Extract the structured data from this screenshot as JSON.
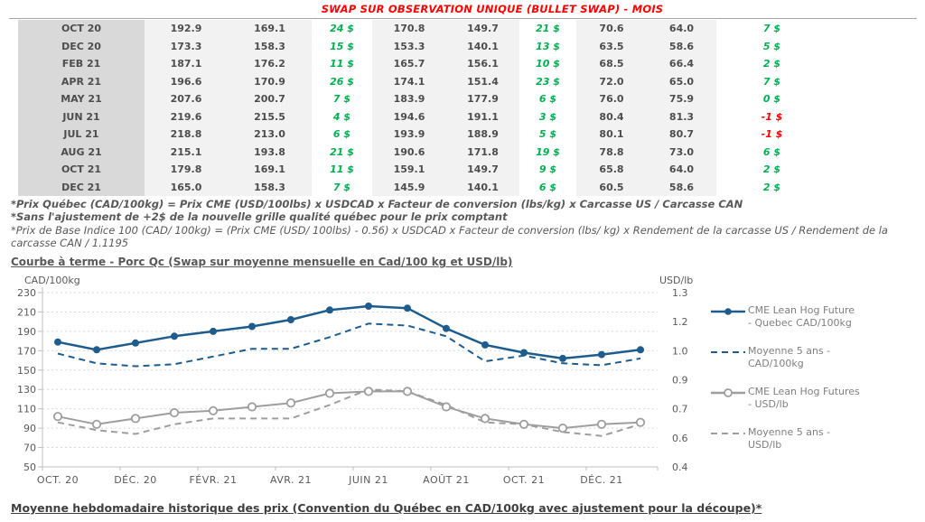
{
  "title": "SWAP SUR OBSERVATION UNIQUE (BULLET SWAP) - MOIS",
  "table": {
    "rows": [
      {
        "month": "OCT 20",
        "cells": [
          "192.9",
          "169.1",
          "24 $",
          "170.8",
          "149.7",
          "21 $",
          "70.6",
          "64.0",
          "7 $"
        ]
      },
      {
        "month": "DEC 20",
        "cells": [
          "173.3",
          "158.3",
          "15 $",
          "153.3",
          "140.1",
          "13 $",
          "63.5",
          "58.6",
          "5 $"
        ]
      },
      {
        "month": "FEB 21",
        "cells": [
          "187.1",
          "176.2",
          "11 $",
          "165.7",
          "156.1",
          "10 $",
          "68.5",
          "66.4",
          "2 $"
        ]
      },
      {
        "month": "APR 21",
        "cells": [
          "196.6",
          "170.9",
          "26 $",
          "174.1",
          "151.4",
          "23 $",
          "72.0",
          "65.0",
          "7 $"
        ]
      },
      {
        "month": "MAY 21",
        "cells": [
          "207.6",
          "200.7",
          "7 $",
          "183.9",
          "177.9",
          "6 $",
          "76.0",
          "75.9",
          "0 $"
        ]
      },
      {
        "month": "JUN 21",
        "cells": [
          "219.6",
          "215.5",
          "4 $",
          "194.6",
          "191.1",
          "3 $",
          "80.4",
          "81.3",
          "-1 $"
        ]
      },
      {
        "month": "JUL 21",
        "cells": [
          "218.8",
          "213.0",
          "6 $",
          "193.9",
          "188.9",
          "5 $",
          "80.1",
          "80.7",
          "-1 $"
        ]
      },
      {
        "month": "AUG 21",
        "cells": [
          "215.1",
          "193.8",
          "21 $",
          "190.6",
          "171.8",
          "19 $",
          "78.8",
          "73.0",
          "6 $"
        ]
      },
      {
        "month": "OCT 21",
        "cells": [
          "179.8",
          "169.1",
          "11 $",
          "159.1",
          "149.7",
          "9 $",
          "65.8",
          "64.0",
          "2 $"
        ]
      },
      {
        "month": "DEC 21",
        "cells": [
          "165.0",
          "158.3",
          "7 $",
          "145.9",
          "140.1",
          "6 $",
          "60.5",
          "58.6",
          "2 $"
        ]
      }
    ]
  },
  "footnotes": [
    "*Prix Québec (CAD/100kg) = Prix CME (USD/100lbs) x USDCAD x Facteur de conversion (lbs/kg) x Carcasse US / Carcasse CAN",
    "*Sans l'ajustement de +2$ de la nouvelle grille qualité québec pour le prix comptant",
    "*Prix de Base Indice 100 (CAD/ 100kg) = (Prix CME (USD/ 100lbs) - 0.56) x USDCAD x Facteur de conversion (lbs/ kg) x Rendement de la carcasse US / Rendement de la carcasse CAN / 1.1195"
  ],
  "chart_heading": "Courbe à terme - Porc Qc (Swap sur moyenne mensuelle en Cad/100 kg et USD/lb)",
  "bottom_heading": "Moyenne hebdomadaire historique des prix (Convention du Québec en CAD/100kg avec ajustement pour la découpe)*",
  "colors": {
    "title_red": "#ff0000",
    "positive_green": "#00b050",
    "negative_red": "#ff0000",
    "series_blue": "#1d5c8d",
    "series_gray": "#9e9e9e"
  },
  "chart_data": {
    "type": "line",
    "title": "Courbe à terme - Porc Qc (Swap sur moyenne mensuelle en Cad/100 kg et USD/lb)",
    "x": [
      "OCT 20",
      "NOV 20",
      "DÉC 20",
      "JANV 21",
      "FÉVR 21",
      "MARS 21",
      "AVR 21",
      "MAI 21",
      "JUIN 21",
      "JUIL 21",
      "AOÛT 21",
      "SEPT 21",
      "OCT 21",
      "NOV 21",
      "DÉC 21",
      "JANV 22"
    ],
    "x_tick_labels": [
      "OCT. 20",
      "DÉC. 20",
      "FÉVR. 21",
      "AVR. 21",
      "JUIN 21",
      "AOÛT 21",
      "OCT. 21",
      "DÉC. 21"
    ],
    "left_axis": {
      "title": "CAD/100kg",
      "min": 50,
      "max": 230,
      "ticks": [
        230,
        210,
        190,
        170,
        150,
        130,
        110,
        90,
        70,
        50
      ]
    },
    "right_axis": {
      "title": "USD/lb",
      "min": 0.4,
      "max": 1.3,
      "tick_labels": [
        "1.3",
        "1.2",
        "1.0",
        "0.9",
        "0.7",
        "0.6",
        "0.4"
      ]
    },
    "grid": "horizontal-dashed",
    "legend_position": "right",
    "series": [
      {
        "name": "CME Lean Hog Future - Quebec CAD/100kg",
        "legend_lines": [
          "CME Lean Hog Future",
          "- Quebec CAD/100kg"
        ],
        "axis": "left",
        "style": "solid",
        "marker": "filled",
        "color": "#1d5c8d",
        "values": [
          179,
          171,
          178,
          185,
          190,
          195,
          202,
          212,
          216,
          214,
          193,
          176,
          168,
          162,
          166,
          171
        ]
      },
      {
        "name": "Moyenne 5 ans - CAD/100kg",
        "legend_lines": [
          "Moyenne 5 ans -",
          "CAD/100kg"
        ],
        "axis": "left",
        "style": "dashed",
        "marker": "none",
        "color": "#1d5c8d",
        "values": [
          167,
          157,
          154,
          156,
          164,
          172,
          172,
          184,
          198,
          196,
          185,
          159,
          165,
          157,
          155,
          162
        ]
      },
      {
        "name": "CME Lean Hog Futures - USD/lb",
        "legend_lines": [
          "CME Lean Hog Futures",
          "- USD/lb"
        ],
        "axis": "right",
        "style": "solid",
        "marker": "open",
        "color": "#9e9e9e",
        "values": [
          0.66,
          0.62,
          0.65,
          0.68,
          0.69,
          0.71,
          0.73,
          0.78,
          0.79,
          0.79,
          0.71,
          0.65,
          0.62,
          0.6,
          0.62,
          0.63
        ]
      },
      {
        "name": "Moyenne 5 ans - USD/lb",
        "legend_lines": [
          "Moyenne 5 ans -",
          "USD/lb"
        ],
        "axis": "right",
        "style": "dashed",
        "marker": "none",
        "color": "#9e9e9e",
        "values": [
          0.63,
          0.59,
          0.57,
          0.62,
          0.65,
          0.65,
          0.65,
          0.72,
          0.8,
          0.79,
          0.72,
          0.63,
          0.62,
          0.58,
          0.56,
          0.62
        ]
      }
    ]
  }
}
